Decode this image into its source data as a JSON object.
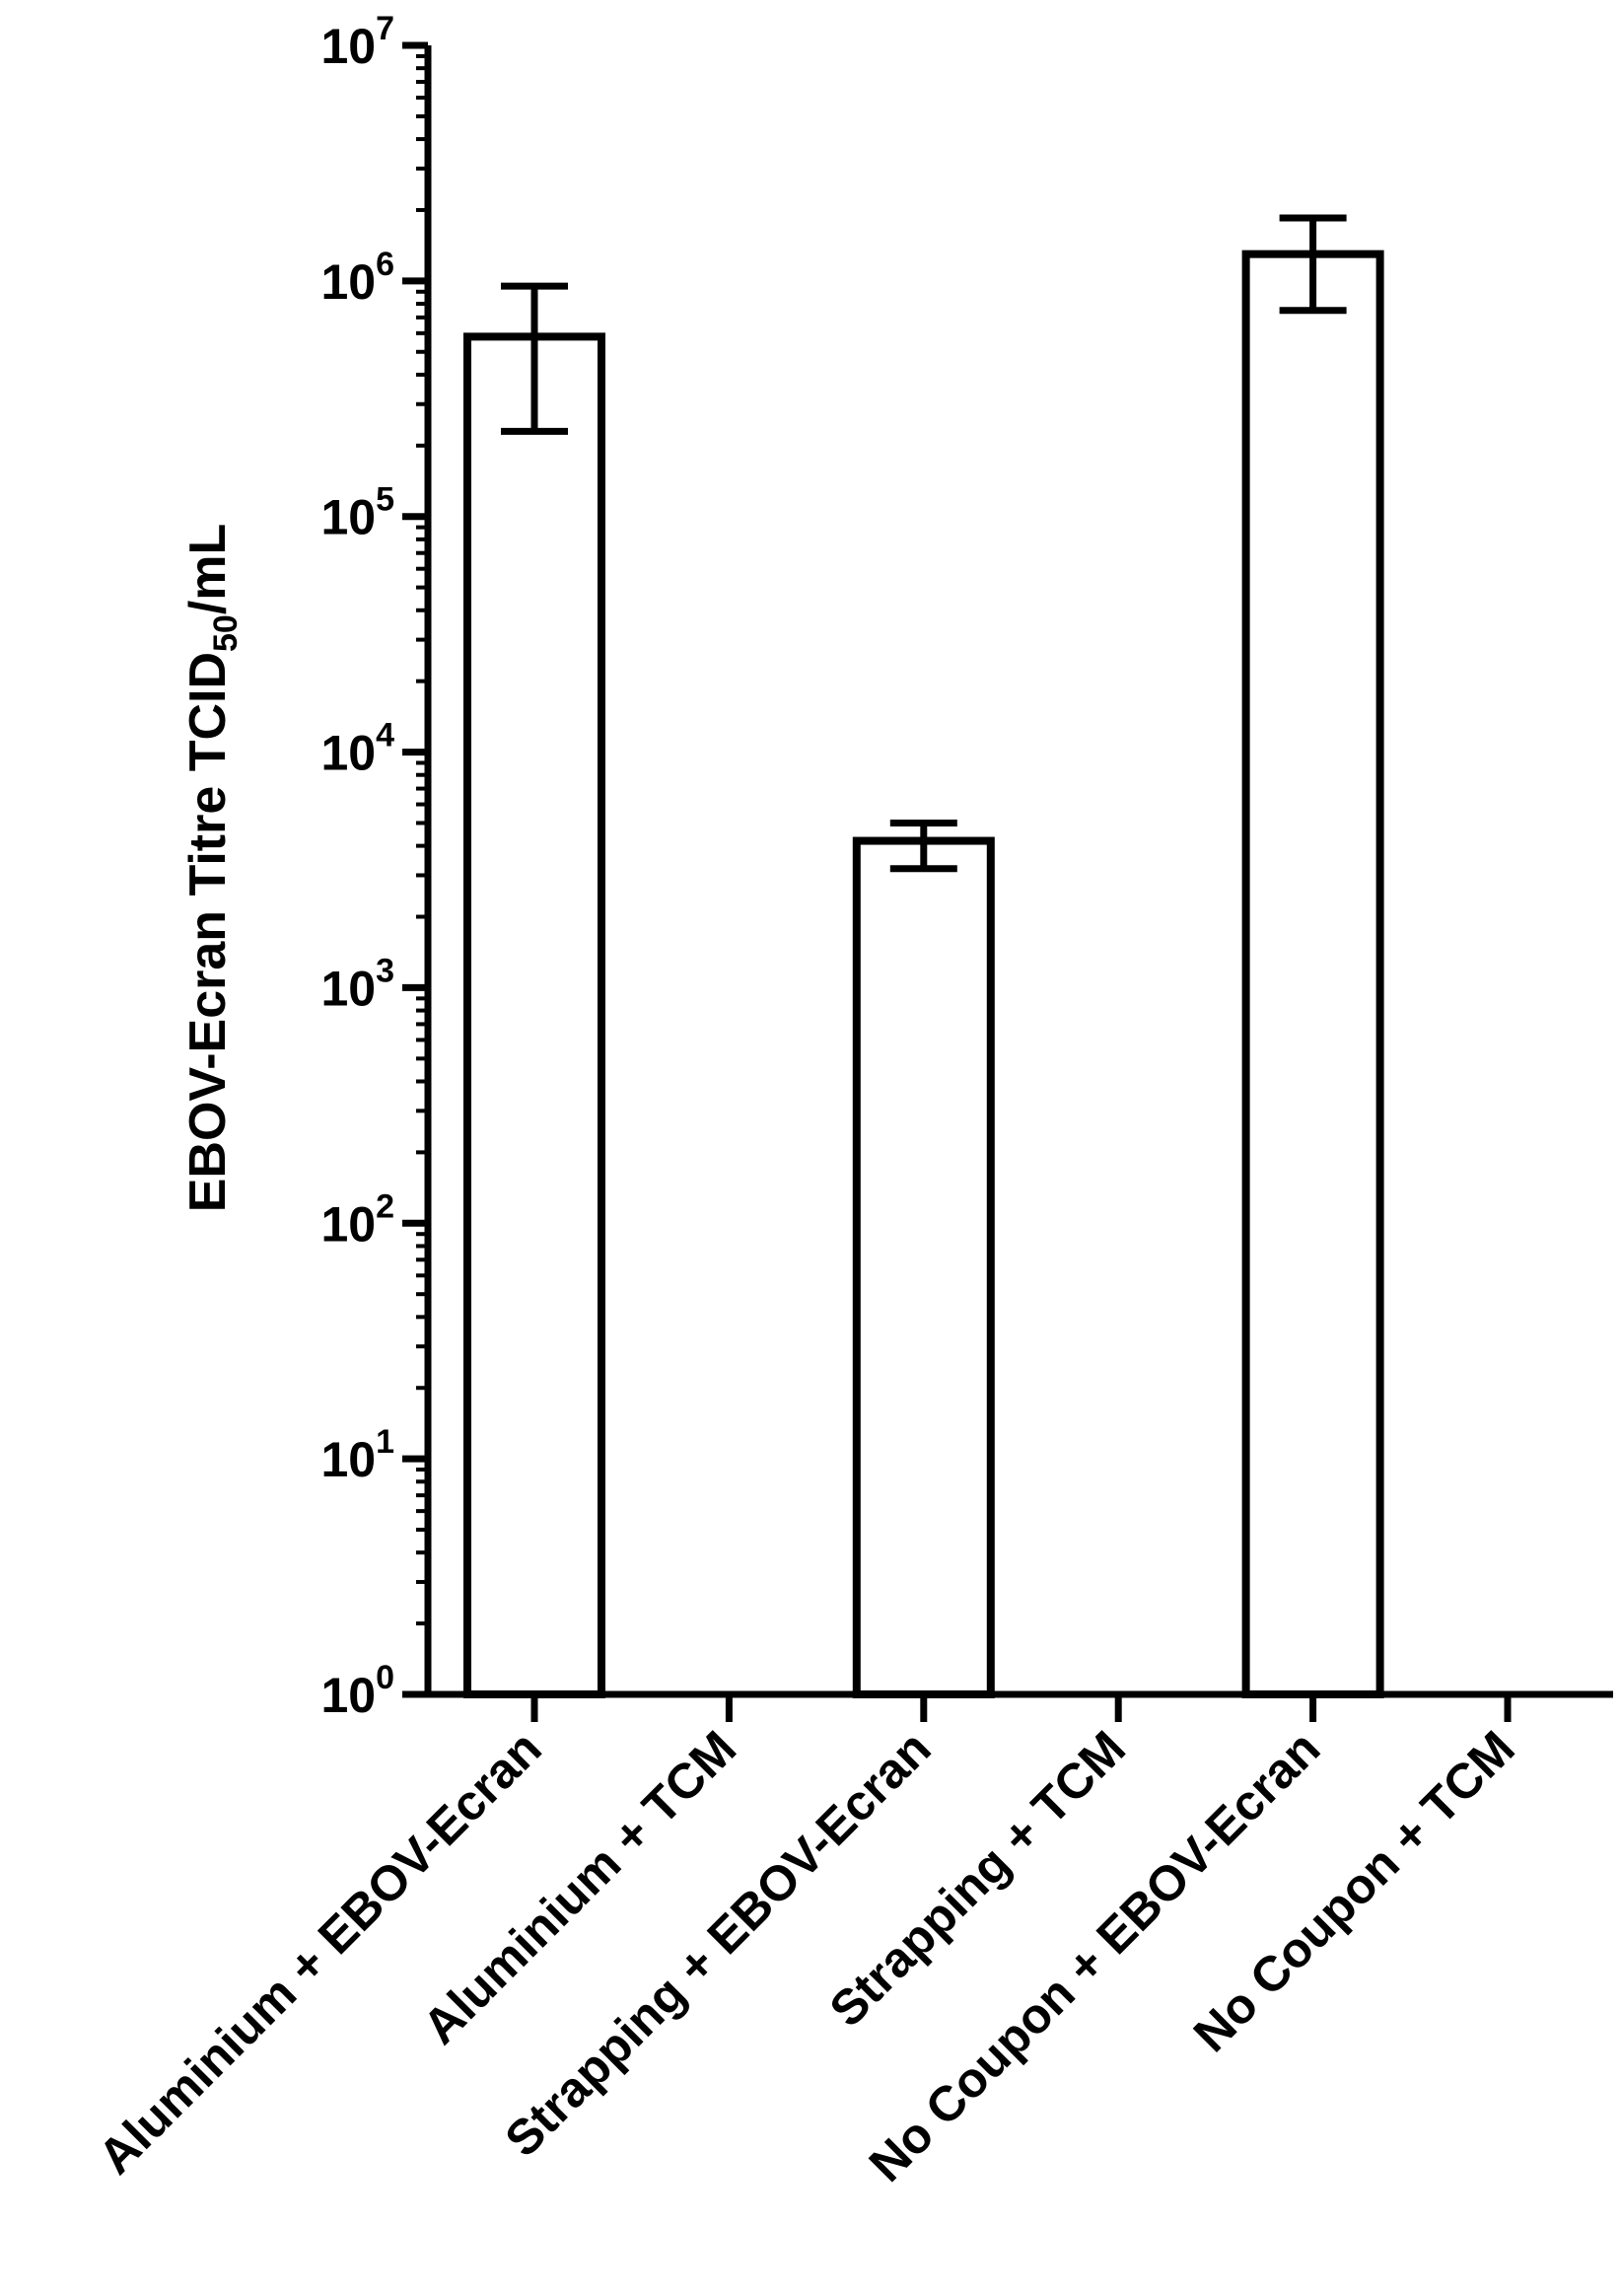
{
  "chart_data": {
    "type": "bar",
    "title": "",
    "ylabel": {
      "main": "EBOV-Ecran Titre TCID",
      "subscript": "50",
      "suffix": "/mL"
    },
    "xlabel": "",
    "yscale": "log",
    "ylim": [
      1,
      10000000
    ],
    "yticks": [
      {
        "value": 1,
        "base": "10",
        "exp": "0"
      },
      {
        "value": 10,
        "base": "10",
        "exp": "1"
      },
      {
        "value": 100,
        "base": "10",
        "exp": "2"
      },
      {
        "value": 1000,
        "base": "10",
        "exp": "3"
      },
      {
        "value": 10000,
        "base": "10",
        "exp": "4"
      },
      {
        "value": 100000,
        "base": "10",
        "exp": "5"
      },
      {
        "value": 1000000,
        "base": "10",
        "exp": "6"
      },
      {
        "value": 10000000,
        "base": "10",
        "exp": "7"
      }
    ],
    "categories": [
      "Aluminium + EBOV-Ecran",
      "Aluminium + TCM",
      "Strapping + EBOV-Ecran",
      "Strapping + TCM",
      "No Coupon + EBOV-Ecran",
      "No Coupon + TCM"
    ],
    "values": [
      580000,
      null,
      4200,
      null,
      1300000,
      null
    ],
    "error_low": [
      230000,
      null,
      3200,
      null,
      750000,
      null
    ],
    "error_high": [
      950000,
      null,
      5000,
      null,
      1850000,
      null
    ],
    "bar_fill": "#ffffff",
    "bar_stroke": "#000000",
    "grid": false,
    "legend": "none"
  }
}
